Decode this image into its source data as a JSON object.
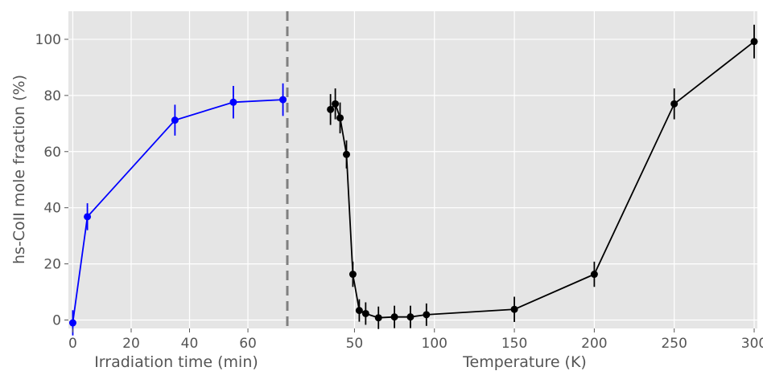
{
  "chart_data": {
    "type": "line",
    "ylabel": "hs-CoII mole fraction (%)",
    "ylim": [
      -3,
      110
    ],
    "yticks": [
      0,
      20,
      40,
      60,
      80,
      100
    ],
    "grid": true,
    "divider": "dashed vertical line between panels",
    "panels": [
      {
        "xlabel": "Irradiation time (min)",
        "xlim": [
          -1.5,
          73.5
        ],
        "xticks": [
          0,
          20,
          40,
          60
        ],
        "series": [
          {
            "color": "#0000ff",
            "x": [
              0,
              5,
              35,
              55,
              72
            ],
            "y": [
              -1,
              36.8,
              71.2,
              77.6,
              78.5
            ],
            "yerr": [
              4.5,
              4.8,
              5.5,
              5.8,
              5.8
            ]
          }
        ]
      },
      {
        "xlabel": "Temperature (K)",
        "xlim": [
          8,
          302
        ],
        "xticks": [
          50,
          100,
          150,
          200,
          250,
          300
        ],
        "series": [
          {
            "color": "#000000",
            "x": [
              35,
              38,
              41,
              45,
              49,
              53,
              57,
              65,
              75,
              85,
              95,
              150,
              200,
              250,
              300
            ],
            "y": [
              75,
              77,
              72,
              59,
              16.3,
              3.4,
              2.3,
              0.8,
              1.1,
              1.1,
              1.9,
              3.8,
              16.3,
              77,
              99.2
            ],
            "yerr": [
              5.5,
              5.5,
              5.5,
              5,
              4.5,
              4,
              4,
              4,
              4,
              4,
              4,
              4.5,
              4.5,
              5.5,
              6
            ]
          }
        ]
      }
    ]
  }
}
